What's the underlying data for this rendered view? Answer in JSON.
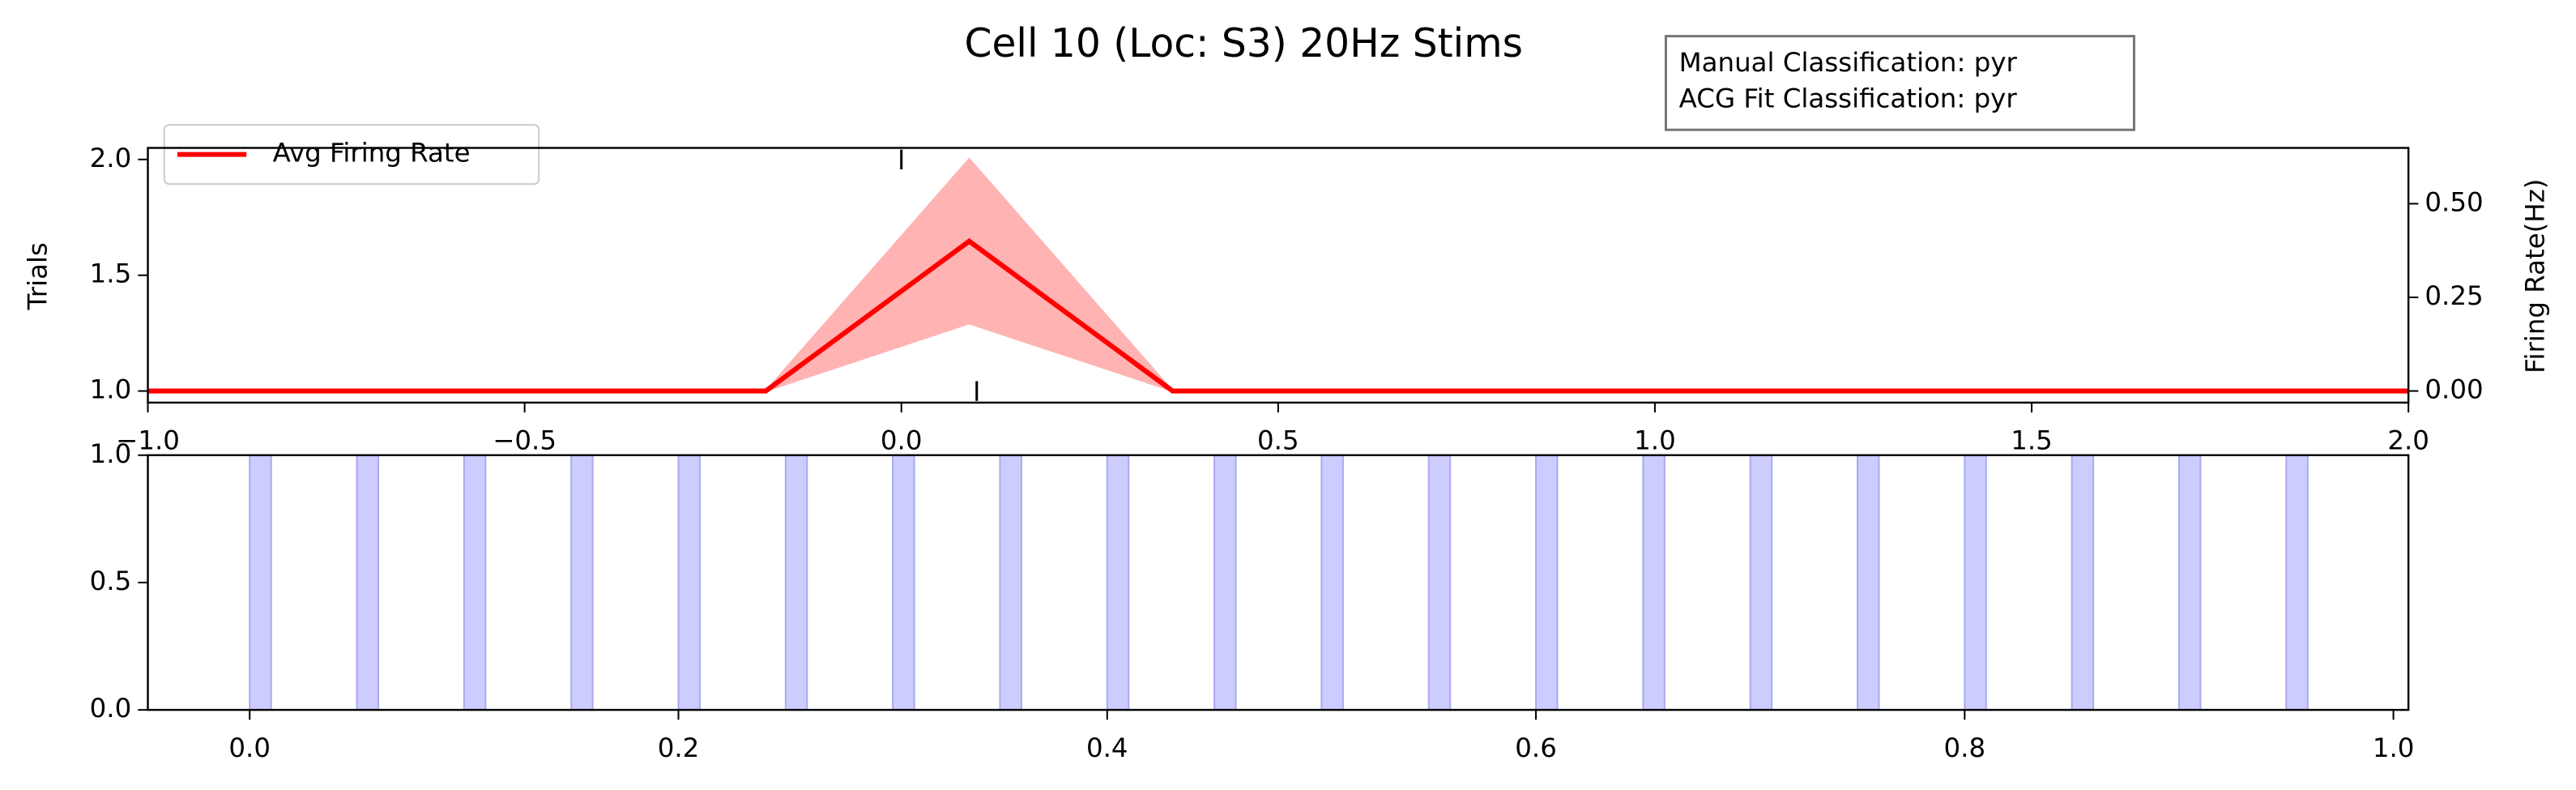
{
  "chart_data": [
    {
      "type": "line",
      "title": "Cell 10 (Loc: S3) 20Hz Stims",
      "annotations": [
        "Manual Classification: pyr",
        "ACG Fit Classification: pyr"
      ],
      "ylabel": "Trials",
      "y2label": "Firing Rate(Hz)",
      "xlim": [
        -1.0,
        2.0
      ],
      "xticks": [
        {
          "value": -1.0,
          "label": "−1.0"
        },
        {
          "value": -0.5,
          "label": "−0.5"
        },
        {
          "value": 0,
          "label": "0.0"
        },
        0.5,
        {
          "value": 1,
          "label": "1.0"
        },
        1.5,
        {
          "value": 2,
          "label": "2.0"
        }
      ],
      "ylim": [
        0.95,
        2.05
      ],
      "yticks": [
        {
          "value": 1,
          "label": "1.0"
        },
        1.5,
        {
          "value": 2,
          "label": "2.0"
        }
      ],
      "y2lim": [
        -0.031,
        0.649
      ],
      "y2ticks": [
        {
          "value": 0,
          "label": "0.00"
        },
        0.25,
        {
          "value": 0.5,
          "label": "0.50"
        }
      ],
      "legend": "upper left",
      "x": [
        -1.0,
        -0.18,
        0.09,
        0.36,
        2.0
      ],
      "series": [
        {
          "name": "Avg Firing Rate",
          "color": "#ff0000",
          "band_color": "#ffb3b3",
          "axis": "y2",
          "values": [
            0,
            0,
            0.4,
            0,
            0
          ],
          "lower": [
            0,
            0,
            0.18,
            0,
            0
          ],
          "upper": [
            0,
            0,
            0.62,
            0,
            0
          ]
        }
      ],
      "raster": {
        "x": [
          0.0,
          0.1
        ],
        "y": [
          2,
          1
        ],
        "color": "#000000"
      }
    },
    {
      "type": "span",
      "xlim": [
        -0.0475,
        1.007
      ],
      "xticks": [
        {
          "value": 0,
          "label": "0.0"
        },
        0.2,
        0.4,
        0.6,
        0.8,
        {
          "value": 1,
          "label": "1.0"
        }
      ],
      "ylim": [
        0,
        1
      ],
      "yticks": [
        {
          "value": 0,
          "label": "0.0"
        },
        0.5,
        {
          "value": 1,
          "label": "1.0"
        }
      ],
      "spans": {
        "start": [
          0,
          0.05,
          0.1,
          0.15,
          0.2,
          0.25,
          0.3,
          0.35,
          0.4,
          0.45,
          0.5,
          0.55,
          0.6,
          0.65,
          0.7,
          0.75,
          0.8,
          0.85,
          0.9,
          0.95
        ],
        "width": 0.01,
        "color": "#ccccff",
        "edge": "#aaaaee"
      }
    }
  ]
}
